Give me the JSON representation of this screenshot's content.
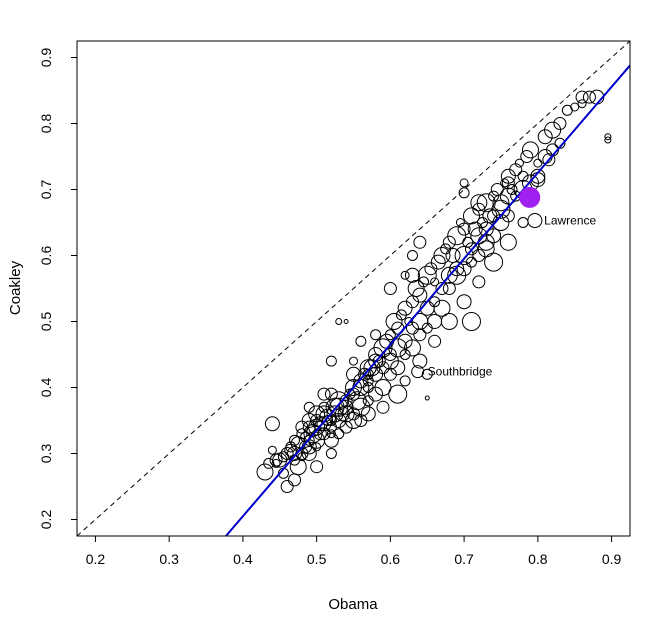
{
  "chart_data": {
    "type": "scatter",
    "title": "",
    "xlabel": "Obama",
    "ylabel": "Coakley",
    "xlim": [
      0.175,
      0.925
    ],
    "ylim": [
      0.175,
      0.925
    ],
    "xticks": [
      "0.2",
      "0.3",
      "0.4",
      "0.5",
      "0.6",
      "0.7",
      "0.8",
      "0.9"
    ],
    "yticks": [
      "0.2",
      "0.3",
      "0.4",
      "0.5",
      "0.6",
      "0.7",
      "0.8",
      "0.9"
    ],
    "grid": false,
    "reference_line": {
      "style": "dashed",
      "color": "#000000",
      "slope": 1,
      "intercept": 0
    },
    "fit_line": {
      "color": "#0000cc",
      "x": [
        0.377,
        0.925
      ],
      "y": [
        0.175,
        0.888
      ]
    },
    "point_color": "#000000",
    "highlight_color": "#a020f0",
    "annotations": [
      {
        "text": "Lawrence",
        "x": 0.795,
        "y": 0.653
      },
      {
        "text": "Southbridge",
        "x": 0.637,
        "y": 0.424
      }
    ],
    "highlight_points": [
      {
        "label": "Lawrence",
        "x": 0.789,
        "y": 0.688
      }
    ],
    "points": [
      [
        0.43,
        0.272
      ],
      [
        0.435,
        0.285
      ],
      [
        0.445,
        0.29
      ],
      [
        0.44,
        0.305
      ],
      [
        0.455,
        0.27
      ],
      [
        0.46,
        0.25
      ],
      [
        0.47,
        0.26
      ],
      [
        0.475,
        0.28
      ],
      [
        0.48,
        0.295
      ],
      [
        0.465,
        0.31
      ],
      [
        0.47,
        0.3
      ],
      [
        0.485,
        0.31
      ],
      [
        0.49,
        0.32
      ],
      [
        0.495,
        0.33
      ],
      [
        0.5,
        0.34
      ],
      [
        0.505,
        0.33
      ],
      [
        0.51,
        0.345
      ],
      [
        0.515,
        0.35
      ],
      [
        0.52,
        0.33
      ],
      [
        0.525,
        0.36
      ],
      [
        0.53,
        0.37
      ],
      [
        0.535,
        0.36
      ],
      [
        0.54,
        0.38
      ],
      [
        0.545,
        0.39
      ],
      [
        0.55,
        0.4
      ],
      [
        0.555,
        0.38
      ],
      [
        0.56,
        0.41
      ],
      [
        0.565,
        0.42
      ],
      [
        0.57,
        0.4
      ],
      [
        0.575,
        0.43
      ],
      [
        0.58,
        0.45
      ],
      [
        0.585,
        0.44
      ],
      [
        0.59,
        0.46
      ],
      [
        0.595,
        0.47
      ],
      [
        0.6,
        0.48
      ],
      [
        0.605,
        0.5
      ],
      [
        0.61,
        0.49
      ],
      [
        0.615,
        0.51
      ],
      [
        0.62,
        0.52
      ],
      [
        0.625,
        0.5
      ],
      [
        0.63,
        0.53
      ],
      [
        0.635,
        0.55
      ],
      [
        0.64,
        0.54
      ],
      [
        0.645,
        0.56
      ],
      [
        0.65,
        0.57
      ],
      [
        0.655,
        0.58
      ],
      [
        0.66,
        0.56
      ],
      [
        0.665,
        0.59
      ],
      [
        0.67,
        0.6
      ],
      [
        0.675,
        0.61
      ],
      [
        0.68,
        0.62
      ],
      [
        0.685,
        0.6
      ],
      [
        0.69,
        0.63
      ],
      [
        0.695,
        0.65
      ],
      [
        0.7,
        0.64
      ],
      [
        0.705,
        0.62
      ],
      [
        0.71,
        0.66
      ],
      [
        0.715,
        0.64
      ],
      [
        0.72,
        0.67
      ],
      [
        0.725,
        0.65
      ],
      [
        0.73,
        0.68
      ],
      [
        0.735,
        0.66
      ],
      [
        0.74,
        0.69
      ],
      [
        0.745,
        0.7
      ],
      [
        0.75,
        0.68
      ],
      [
        0.755,
        0.71
      ],
      [
        0.76,
        0.72
      ],
      [
        0.765,
        0.7
      ],
      [
        0.77,
        0.73
      ],
      [
        0.775,
        0.74
      ],
      [
        0.78,
        0.72
      ],
      [
        0.785,
        0.75
      ],
      [
        0.79,
        0.76
      ],
      [
        0.8,
        0.74
      ],
      [
        0.81,
        0.78
      ],
      [
        0.82,
        0.79
      ],
      [
        0.83,
        0.8
      ],
      [
        0.84,
        0.82
      ],
      [
        0.86,
        0.83
      ],
      [
        0.87,
        0.84
      ],
      [
        0.88,
        0.84
      ],
      [
        0.895,
        0.78
      ],
      [
        0.5,
        0.35
      ],
      [
        0.52,
        0.34
      ],
      [
        0.53,
        0.35
      ],
      [
        0.51,
        0.36
      ],
      [
        0.49,
        0.34
      ],
      [
        0.48,
        0.33
      ],
      [
        0.5,
        0.31
      ],
      [
        0.52,
        0.32
      ],
      [
        0.54,
        0.36
      ],
      [
        0.56,
        0.37
      ],
      [
        0.55,
        0.36
      ],
      [
        0.57,
        0.38
      ],
      [
        0.58,
        0.39
      ],
      [
        0.59,
        0.4
      ],
      [
        0.6,
        0.42
      ],
      [
        0.62,
        0.45
      ],
      [
        0.61,
        0.43
      ],
      [
        0.63,
        0.46
      ],
      [
        0.64,
        0.48
      ],
      [
        0.66,
        0.5
      ],
      [
        0.65,
        0.49
      ],
      [
        0.67,
        0.52
      ],
      [
        0.68,
        0.55
      ],
      [
        0.69,
        0.57
      ],
      [
        0.7,
        0.58
      ],
      [
        0.72,
        0.6
      ],
      [
        0.71,
        0.59
      ],
      [
        0.73,
        0.62
      ],
      [
        0.74,
        0.63
      ],
      [
        0.76,
        0.66
      ],
      [
        0.75,
        0.65
      ],
      [
        0.77,
        0.69
      ],
      [
        0.78,
        0.7
      ],
      [
        0.8,
        0.72
      ],
      [
        0.79,
        0.71
      ],
      [
        0.82,
        0.76
      ],
      [
        0.81,
        0.75
      ],
      [
        0.83,
        0.77
      ],
      [
        0.62,
        0.57
      ],
      [
        0.63,
        0.6
      ],
      [
        0.64,
        0.62
      ],
      [
        0.7,
        0.71
      ],
      [
        0.72,
        0.68
      ],
      [
        0.53,
        0.5
      ],
      [
        0.56,
        0.47
      ],
      [
        0.6,
        0.45
      ],
      [
        0.58,
        0.44
      ],
      [
        0.57,
        0.42
      ],
      [
        0.52,
        0.39
      ],
      [
        0.51,
        0.37
      ],
      [
        0.5,
        0.36
      ],
      [
        0.49,
        0.35
      ],
      [
        0.48,
        0.34
      ],
      [
        0.47,
        0.32
      ],
      [
        0.46,
        0.3
      ],
      [
        0.45,
        0.29
      ],
      [
        0.47,
        0.29
      ],
      [
        0.48,
        0.3
      ],
      [
        0.49,
        0.31
      ],
      [
        0.5,
        0.32
      ],
      [
        0.51,
        0.33
      ],
      [
        0.52,
        0.35
      ],
      [
        0.53,
        0.38
      ],
      [
        0.54,
        0.37
      ],
      [
        0.55,
        0.39
      ],
      [
        0.56,
        0.4
      ],
      [
        0.57,
        0.41
      ],
      [
        0.58,
        0.42
      ],
      [
        0.59,
        0.43
      ],
      [
        0.6,
        0.44
      ],
      [
        0.61,
        0.46
      ],
      [
        0.62,
        0.47
      ],
      [
        0.63,
        0.49
      ],
      [
        0.64,
        0.5
      ],
      [
        0.65,
        0.52
      ],
      [
        0.66,
        0.53
      ],
      [
        0.67,
        0.55
      ],
      [
        0.68,
        0.57
      ],
      [
        0.69,
        0.58
      ],
      [
        0.7,
        0.6
      ],
      [
        0.71,
        0.61
      ],
      [
        0.72,
        0.63
      ],
      [
        0.73,
        0.64
      ],
      [
        0.74,
        0.66
      ],
      [
        0.75,
        0.67
      ],
      [
        0.76,
        0.69
      ],
      [
        0.65,
        0.42
      ],
      [
        0.637,
        0.424
      ],
      [
        0.8,
        0.715
      ],
      [
        0.815,
        0.745
      ],
      [
        0.85,
        0.825
      ],
      [
        0.86,
        0.84
      ],
      [
        0.895,
        0.775
      ],
      [
        0.44,
        0.345
      ],
      [
        0.49,
        0.37
      ],
      [
        0.54,
        0.5
      ],
      [
        0.6,
        0.55
      ],
      [
        0.63,
        0.57
      ],
      [
        0.7,
        0.695
      ],
      [
        0.73,
        0.61
      ],
      [
        0.76,
        0.71
      ],
      [
        0.58,
        0.48
      ],
      [
        0.55,
        0.44
      ],
      [
        0.525,
        0.37
      ],
      [
        0.515,
        0.355
      ],
      [
        0.505,
        0.345
      ],
      [
        0.495,
        0.335
      ],
      [
        0.485,
        0.325
      ],
      [
        0.475,
        0.315
      ],
      [
        0.465,
        0.305
      ],
      [
        0.455,
        0.295
      ],
      [
        0.445,
        0.285
      ],
      [
        0.52,
        0.44
      ],
      [
        0.55,
        0.42
      ],
      [
        0.57,
        0.43
      ],
      [
        0.56,
        0.35
      ],
      [
        0.52,
        0.3
      ],
      [
        0.5,
        0.28
      ],
      [
        0.49,
        0.3
      ],
      [
        0.51,
        0.39
      ],
      [
        0.53,
        0.33
      ],
      [
        0.54,
        0.34
      ],
      [
        0.55,
        0.35
      ],
      [
        0.57,
        0.36
      ],
      [
        0.59,
        0.37
      ],
      [
        0.61,
        0.39
      ],
      [
        0.62,
        0.41
      ],
      [
        0.64,
        0.44
      ],
      [
        0.66,
        0.47
      ],
      [
        0.68,
        0.5
      ],
      [
        0.7,
        0.53
      ],
      [
        0.72,
        0.56
      ],
      [
        0.74,
        0.59
      ],
      [
        0.76,
        0.62
      ],
      [
        0.78,
        0.65
      ],
      [
        0.65,
        0.384
      ],
      [
        0.796,
        0.653
      ],
      [
        0.71,
        0.5
      ]
    ],
    "sizes": [
      8,
      5,
      6,
      4,
      5,
      6,
      6,
      8,
      4,
      5,
      7,
      6,
      5,
      9,
      8,
      6,
      7,
      5,
      4,
      8,
      9,
      7,
      6,
      5,
      8,
      9,
      7,
      6,
      5,
      8,
      7,
      6,
      9,
      7,
      5,
      8,
      6,
      5,
      7,
      4,
      6,
      8,
      7,
      5,
      9,
      6,
      4,
      7,
      8,
      5,
      6,
      7,
      9,
      4,
      6,
      5,
      8,
      7,
      6,
      5,
      9,
      7,
      5,
      6,
      8,
      4,
      7,
      5,
      6,
      4,
      5,
      6,
      8,
      4,
      7,
      8,
      6,
      5,
      4,
      6,
      7,
      3,
      6,
      5,
      7,
      8,
      6,
      5,
      4,
      7,
      8,
      9,
      6,
      5,
      7,
      8,
      6,
      5,
      7,
      8,
      6,
      7,
      5,
      8,
      6,
      9,
      7,
      6,
      5,
      8,
      7,
      6,
      8,
      5,
      9,
      7,
      8,
      6,
      7,
      5,
      4,
      5,
      6,
      4,
      8,
      3,
      5,
      6,
      7,
      5,
      6,
      5,
      8,
      7,
      6,
      5,
      6,
      7,
      5,
      6,
      7,
      8,
      6,
      5,
      9,
      7,
      6,
      8,
      5,
      7,
      6,
      8,
      9,
      7,
      6,
      8,
      7,
      5,
      6,
      8,
      7,
      9,
      6,
      8,
      7,
      6,
      9,
      8,
      5,
      6,
      7,
      6,
      4,
      6,
      3,
      7,
      5,
      2,
      6,
      7,
      5,
      8,
      6,
      5,
      4,
      9,
      8,
      7,
      6,
      5,
      7,
      6,
      5,
      4,
      5,
      7,
      8,
      6,
      5,
      6,
      7,
      6,
      5,
      6,
      8,
      7,
      6,
      9,
      5,
      7,
      6,
      8,
      7,
      6,
      9,
      8,
      5,
      2,
      7,
      9
    ]
  }
}
